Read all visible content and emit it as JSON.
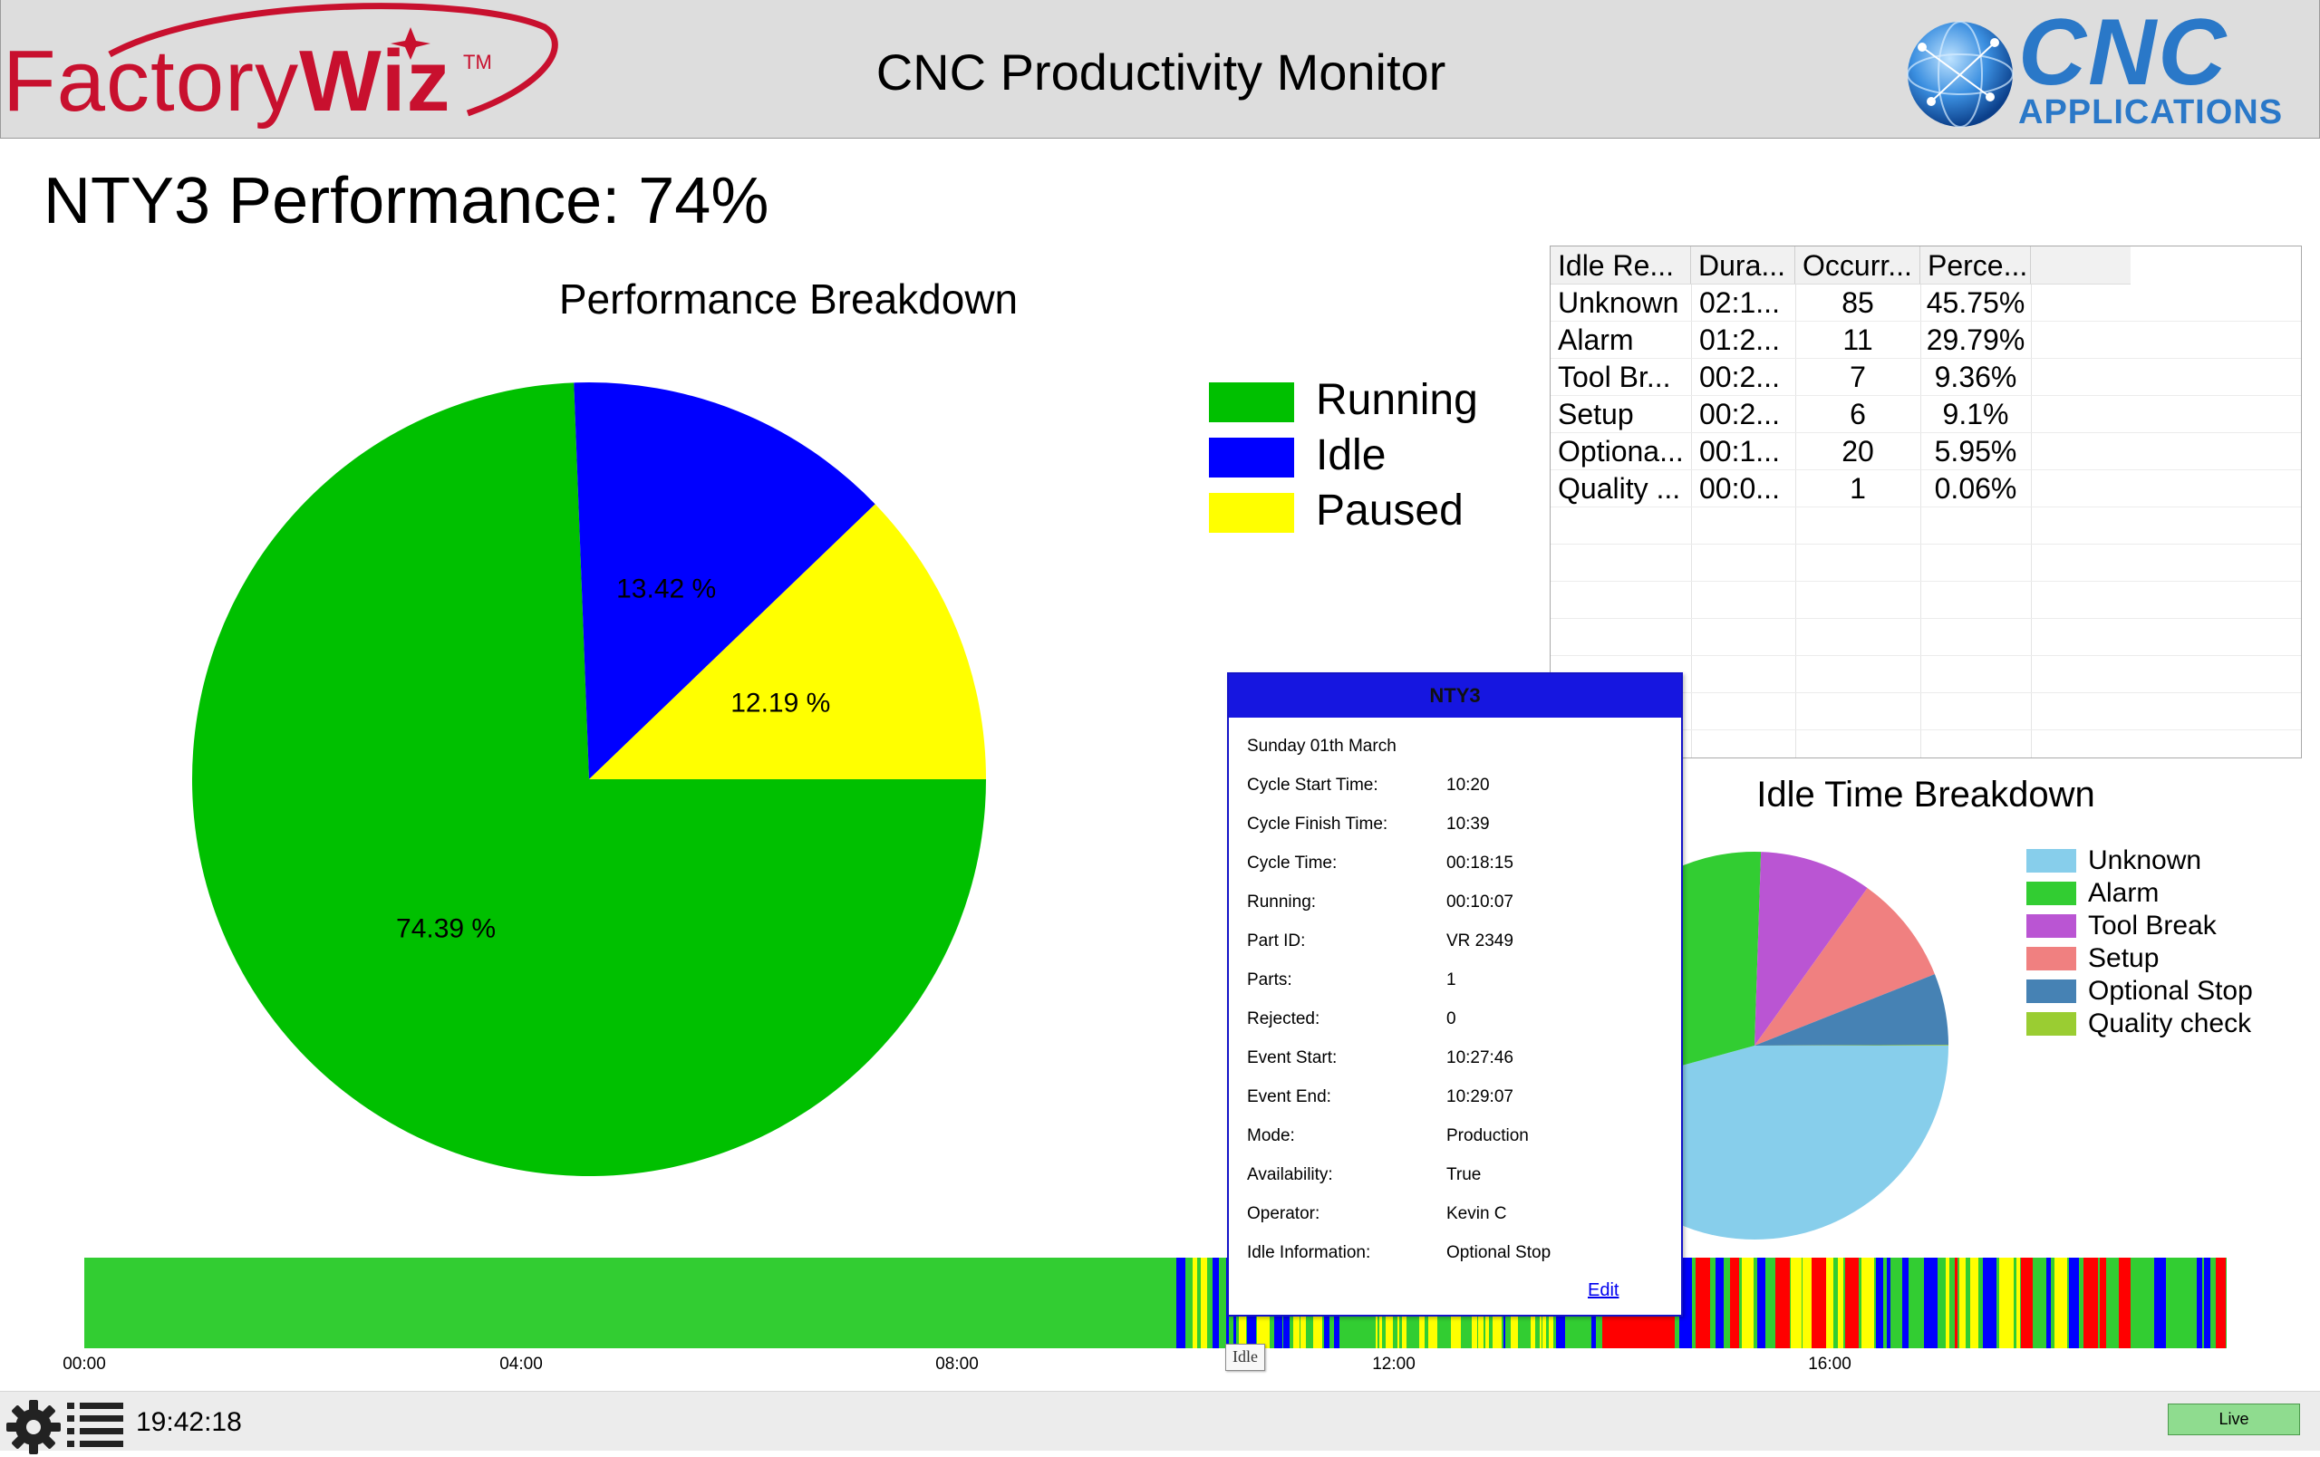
{
  "header": {
    "brand_left_a": "Factory",
    "brand_left_b": "Wiz",
    "brand_left_tm": "TM",
    "title": "CNC Productivity Monitor",
    "brand_right_big": "CNC",
    "brand_right_small": "APPLICATIONS"
  },
  "performance": {
    "title": "NTY3 Performance: 74%"
  },
  "performance_breakdown": {
    "title": "Performance Breakdown",
    "legend": [
      {
        "label": "Running",
        "color": "#00c000"
      },
      {
        "label": "Idle",
        "color": "#0000ff"
      },
      {
        "label": "Paused",
        "color": "#ffff00"
      }
    ]
  },
  "idle_table": {
    "columns": [
      "Idle Re...",
      "Dura...",
      "Occurr...",
      "Perce..."
    ],
    "rows": [
      [
        "Unknown",
        "02:1...",
        "85",
        "45.75%"
      ],
      [
        "Alarm",
        "01:2...",
        "11",
        "29.79%"
      ],
      [
        "Tool Br...",
        "00:2...",
        "7",
        "9.36%"
      ],
      [
        "Setup",
        "00:2...",
        "6",
        "9.1%"
      ],
      [
        "Optiona...",
        "00:1...",
        "20",
        "5.95%"
      ],
      [
        "Quality ...",
        "00:0...",
        "1",
        "0.06%"
      ]
    ]
  },
  "idle_breakdown": {
    "title": "Idle Time Breakdown",
    "legend": [
      {
        "label": "Unknown",
        "color": "#87ceeb"
      },
      {
        "label": "Alarm",
        "color": "#32cd32"
      },
      {
        "label": "Tool Break",
        "color": "#ba55d3"
      },
      {
        "label": "Setup",
        "color": "#f08080"
      },
      {
        "label": "Optional Stop",
        "color": "#4682b4"
      },
      {
        "label": "Quality check",
        "color": "#9acd32"
      }
    ]
  },
  "popup": {
    "title": "NTY3",
    "date": "Sunday 01th March",
    "fields": [
      {
        "key": "Cycle Start Time:",
        "value": "10:20"
      },
      {
        "key": "Cycle Finish Time:",
        "value": "10:39"
      },
      {
        "key": "Cycle Time:",
        "value": "00:18:15"
      },
      {
        "key": "Running:",
        "value": "00:10:07"
      },
      {
        "key": "Part ID:",
        "value": "VR 2349"
      },
      {
        "key": "Parts:",
        "value": "1"
      },
      {
        "key": "Rejected:",
        "value": "0"
      },
      {
        "key": "Event Start:",
        "value": "10:27:46"
      },
      {
        "key": "Event End:",
        "value": "10:29:07"
      },
      {
        "key": "Mode:",
        "value": "Production"
      },
      {
        "key": "Availability:",
        "value": "True"
      },
      {
        "key": "Operator:",
        "value": "Kevin C"
      },
      {
        "key": "Idle Information:",
        "value": "Optional Stop"
      }
    ],
    "edit_label": "Edit"
  },
  "timeline": {
    "ticks": [
      "00:00",
      "04:00",
      "08:00",
      "12:00",
      "16:00"
    ],
    "tooltip": "Idle",
    "state_colors": {
      "running": "#32cd32",
      "idle": "#0000ff",
      "paused": "#ffff00",
      "alarm": "#ff0000"
    }
  },
  "footer": {
    "clock": "19:42:18",
    "live_label": "Live"
  },
  "chart_data": [
    {
      "type": "pie",
      "title": "Performance Breakdown",
      "labels": [
        "Running",
        "Idle",
        "Paused"
      ],
      "values": [
        74.39,
        13.42,
        12.19
      ],
      "value_labels": [
        "74.39 %",
        "13.42 %",
        "12.19 %"
      ],
      "colors": [
        "#00c000",
        "#0000ff",
        "#ffff00"
      ],
      "legend": "right"
    },
    {
      "type": "pie",
      "title": "Idle Time Breakdown",
      "labels": [
        "Unknown",
        "Alarm",
        "Tool Break",
        "Setup",
        "Optional Stop",
        "Quality check"
      ],
      "values": [
        45.75,
        29.79,
        9.36,
        9.1,
        5.95,
        0.06
      ],
      "colors": [
        "#87ceeb",
        "#32cd32",
        "#ba55d3",
        "#f08080",
        "#4682b4",
        "#9acd32"
      ],
      "legend": "right"
    }
  ]
}
